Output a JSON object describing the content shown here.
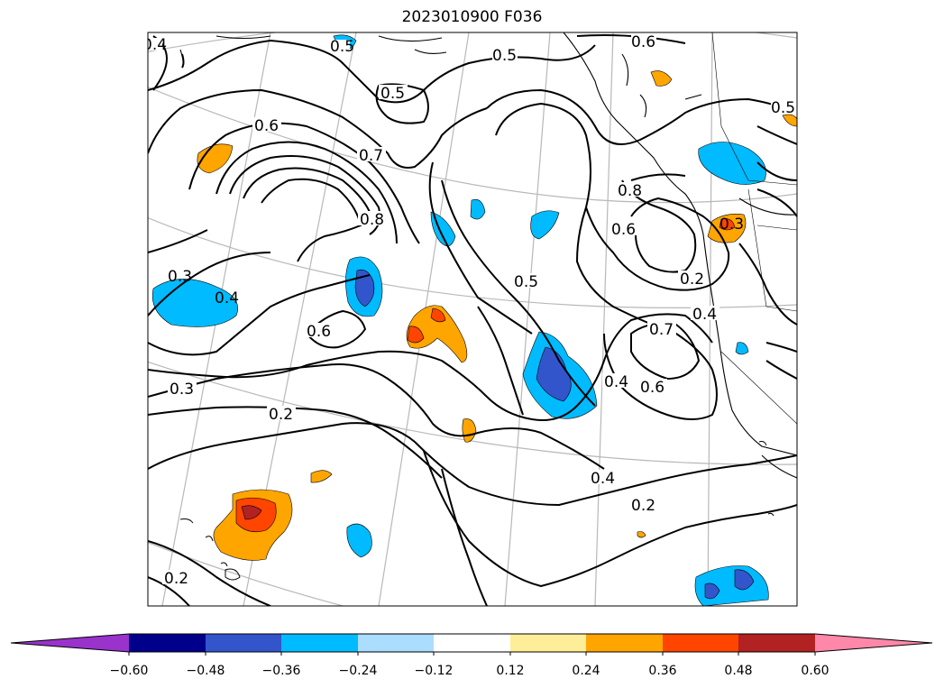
{
  "title": "2023010900 F036",
  "contour_labels": [
    "0.4",
    "0.5",
    "0.5",
    "0.6",
    "0.5",
    "0.7",
    "0.8",
    "0.6",
    "0.8",
    "0.6",
    "0.3",
    "0.4",
    "0.5",
    "0.6",
    "0.3",
    "0.2",
    "0.5",
    "0.2",
    "0.4",
    "0.7",
    "0.6",
    "0.4",
    "0.4",
    "0.2",
    "0.2",
    "0.3"
  ],
  "colorbar": {
    "extend": "both",
    "colors": [
      "#9933cc",
      "#00008b",
      "#3355cc",
      "#00bbff",
      "#aaddff",
      "#ffffff",
      "#ffee99",
      "#ffa500",
      "#ff4500",
      "#b22222",
      "#ff88aa"
    ],
    "ticks": [
      "−0.60",
      "−0.48",
      "−0.36",
      "−0.24",
      "−0.12",
      "0.12",
      "0.24",
      "0.36",
      "0.48",
      "0.60"
    ]
  }
}
